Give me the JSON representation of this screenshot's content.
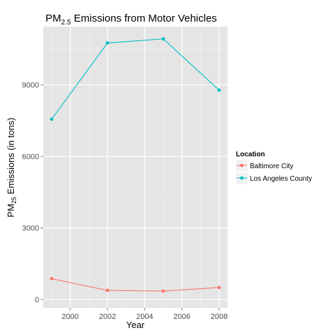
{
  "chart_data": {
    "type": "line",
    "title": {
      "pre": "PM",
      "sub": "2.5",
      "post": " Emissions from Motor Vehicles"
    },
    "xlabel": "Year",
    "ylabel": {
      "pre": "PM",
      "sub": "25",
      "post": " Emissions (in tons)"
    },
    "x": [
      1999,
      2002,
      2005,
      2008
    ],
    "x_ticks": [
      2000,
      2002,
      2004,
      2006,
      2008
    ],
    "x_tick_labels": [
      "2000",
      "2002",
      "2004",
      "2006",
      "2008"
    ],
    "xlim": [
      1998.55,
      2008.45
    ],
    "y_ticks": [
      0,
      3000,
      6000,
      9000
    ],
    "y_tick_labels": [
      "0",
      "3000",
      "6000",
      "9000"
    ],
    "ylim": [
      -350,
      11450
    ],
    "grid": true,
    "legend": {
      "title": "Location",
      "position": "right"
    },
    "series": [
      {
        "name": "Baltimore City",
        "color": "#F8766D",
        "values": [
          870,
          380,
          350,
          500
        ]
      },
      {
        "name": "Los Angeles County",
        "color": "#00BFC4",
        "values": [
          7560,
          10760,
          10930,
          8780
        ]
      }
    ]
  }
}
